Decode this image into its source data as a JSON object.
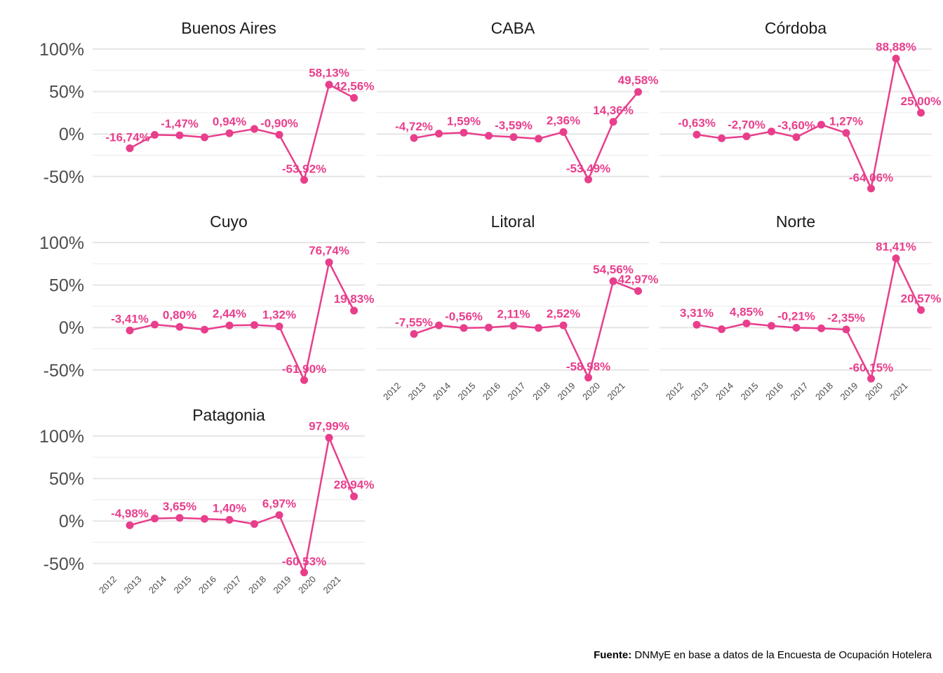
{
  "chart_data": {
    "type": "line",
    "color": "#e83e8c",
    "x": [
      "2012",
      "2013",
      "2014",
      "2015",
      "2016",
      "2017",
      "2018",
      "2019",
      "2020",
      "2021"
    ],
    "y_ticks": [
      "100%",
      "50%",
      "0%",
      "-50%"
    ],
    "y_tick_values": [
      100,
      50,
      0,
      -50
    ],
    "ylim": [
      -60,
      100
    ],
    "grid": true,
    "panels": [
      {
        "name": "Buenos Aires",
        "values": [
          -16.74,
          -1.0,
          -1.47,
          -3.9,
          0.94,
          6.0,
          -0.9,
          -53.92,
          58.13,
          42.56
        ],
        "labels": [
          "-16,74%",
          "",
          "-1,47%",
          "",
          "0,94%",
          "",
          "-0,90%",
          "-53,92%",
          "58,13%",
          "42,56%"
        ]
      },
      {
        "name": "CABA",
        "values": [
          -4.72,
          0.5,
          1.59,
          -2.0,
          -3.59,
          -5.5,
          2.36,
          -53.49,
          14.36,
          49.58
        ],
        "labels": [
          "-4,72%",
          "",
          "1,59%",
          "",
          "-3,59%",
          "",
          "2,36%",
          "-53,49%",
          "14,36%",
          "49,58%"
        ]
      },
      {
        "name": "Córdoba",
        "values": [
          -0.63,
          -5.0,
          -2.7,
          3.0,
          -3.6,
          11.0,
          1.27,
          -64.06,
          88.88,
          25.0
        ],
        "labels": [
          "-0,63%",
          "",
          "-2,70%",
          "",
          "-3,60%",
          "",
          "1,27%",
          "-64,06%",
          "88,88%",
          "25,00%"
        ]
      },
      {
        "name": "Cuyo",
        "values": [
          -3.41,
          3.5,
          0.8,
          -2.5,
          2.44,
          3.0,
          1.32,
          -61.9,
          76.74,
          19.83
        ],
        "labels": [
          "-3,41%",
          "",
          "0,80%",
          "",
          "2,44%",
          "",
          "1,32%",
          "-61,90%",
          "76,74%",
          "19,83%"
        ]
      },
      {
        "name": "Litoral",
        "values": [
          -7.55,
          2.5,
          -0.56,
          0.0,
          2.11,
          -0.5,
          2.52,
          -58.98,
          54.56,
          42.97
        ],
        "labels": [
          "-7,55%",
          "",
          "-0,56%",
          "",
          "2,11%",
          "",
          "2,52%",
          "-58,98%",
          "54,56%",
          "42,97%"
        ]
      },
      {
        "name": "Norte",
        "values": [
          3.31,
          -2.0,
          4.85,
          2.0,
          -0.21,
          -1.0,
          -2.35,
          -60.15,
          81.41,
          20.57
        ],
        "labels": [
          "3,31%",
          "",
          "4,85%",
          "",
          "-0,21%",
          "",
          "-2,35%",
          "-60,15%",
          "81,41%",
          "20,57%"
        ]
      },
      {
        "name": "Patagonia",
        "values": [
          -4.98,
          3.0,
          3.65,
          2.5,
          1.4,
          -3.5,
          6.97,
          -60.53,
          97.99,
          28.94
        ],
        "labels": [
          "-4,98%",
          "",
          "3,65%",
          "",
          "1,40%",
          "",
          "6,97%",
          "-60,53%",
          "97,99%",
          "28,94%"
        ]
      }
    ]
  },
  "source": {
    "bold": "Fuente:",
    "text": " DNMyE en base a datos de la Encuesta de Ocupación Hotelera"
  }
}
